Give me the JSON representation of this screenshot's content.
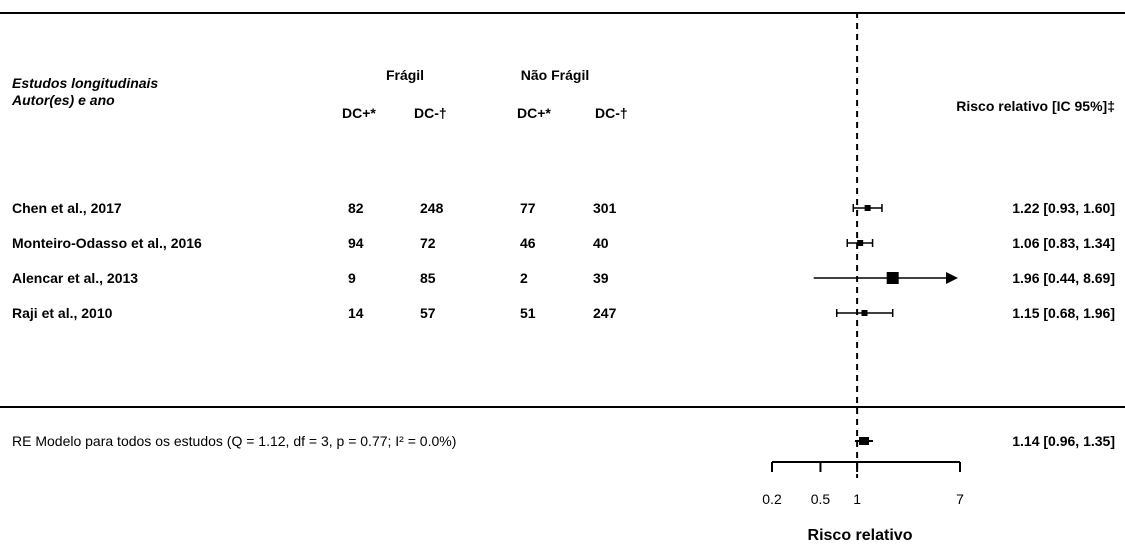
{
  "header": {
    "col_study_line1": "Estudos longitudinais",
    "col_study_line2": "Autor(es) e ano",
    "group_frail": "Frágil",
    "group_nonfrail": "Não Frágil",
    "sub_dcpos": "DC+*",
    "sub_dcneg": "DC-†",
    "col_rr": "Risco relativo [IC 95%]‡"
  },
  "chart_data": {
    "type": "forest",
    "xlabel": "Risco relativo",
    "scale": "log",
    "reference_line": 1,
    "xlim": [
      0.2,
      7
    ],
    "ticks": [
      0.2,
      0.5,
      1,
      7
    ],
    "tick_labels": [
      "0.2",
      "0.5",
      "1",
      "7"
    ],
    "studies": [
      {
        "label": "Chen et al., 2017",
        "frail_dcpos": "82",
        "frail_dcneg": "248",
        "nonfrail_dcpos": "77",
        "nonfrail_dcneg": "301",
        "rr": 1.22,
        "lo": 0.93,
        "hi": 1.6,
        "ci_text": "1.22 [0.93, 1.60]",
        "weight": "small"
      },
      {
        "label": "Monteiro-Odasso et al., 2016",
        "frail_dcpos": "94",
        "frail_dcneg": "72",
        "nonfrail_dcpos": "46",
        "nonfrail_dcneg": "40",
        "rr": 1.06,
        "lo": 0.83,
        "hi": 1.34,
        "ci_text": "1.06 [0.83, 1.34]",
        "weight": "small"
      },
      {
        "label": "Alencar et al., 2013",
        "frail_dcpos": "9",
        "frail_dcneg": "85",
        "nonfrail_dcpos": "2",
        "nonfrail_dcneg": "39",
        "rr": 1.96,
        "lo": 0.44,
        "hi": 8.69,
        "ci_text": "1.96 [0.44, 8.69]",
        "weight": "large",
        "arrow_right": true
      },
      {
        "label": "Raji et al., 2010",
        "frail_dcpos": "14",
        "frail_dcneg": "57",
        "nonfrail_dcpos": "51",
        "nonfrail_dcneg": "247",
        "rr": 1.15,
        "lo": 0.68,
        "hi": 1.96,
        "ci_text": "1.15 [0.68, 1.96]",
        "weight": "small"
      }
    ],
    "summary": {
      "label": "RE Modelo para todos os estudos (Q = 1.12, df = 3, p = 0.77; I² = 0.0%)",
      "rr": 1.14,
      "lo": 0.96,
      "hi": 1.35,
      "ci_text": "1.14 [0.96, 1.35]"
    }
  }
}
